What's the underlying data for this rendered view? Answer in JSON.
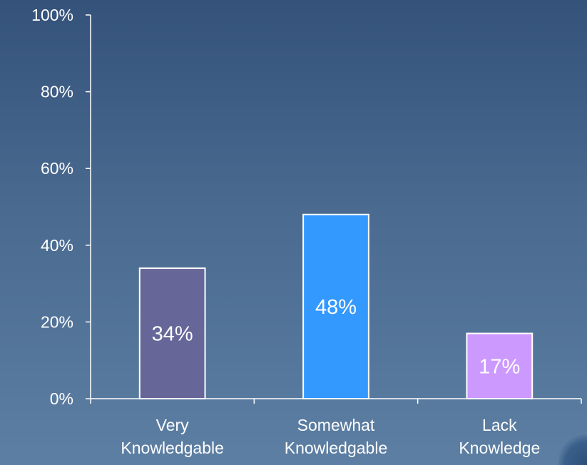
{
  "chart_data": {
    "type": "bar",
    "categories": [
      [
        "Very",
        "Knowledgable"
      ],
      [
        "Somewhat",
        "Knowledgable"
      ],
      [
        "Lack",
        "Knowledge"
      ]
    ],
    "values": [
      34,
      48,
      17
    ],
    "value_labels": [
      "34%",
      "48%",
      "17%"
    ],
    "bar_colors": [
      "#666699",
      "#3399ff",
      "#cc99ff"
    ],
    "yticks": [
      0,
      20,
      40,
      60,
      80,
      100
    ],
    "ytick_labels": [
      "0%",
      "20%",
      "40%",
      "60%",
      "80%",
      "100%"
    ],
    "ylim": [
      0,
      100
    ],
    "title": "",
    "xlabel": "",
    "ylabel": "",
    "grid": false,
    "legend": "none"
  }
}
